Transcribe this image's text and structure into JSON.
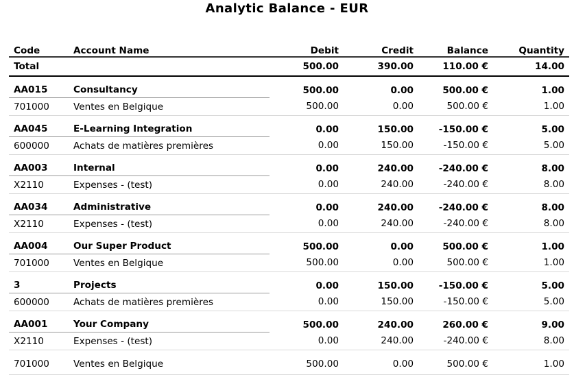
{
  "title": "Analytic Balance - EUR",
  "headers": {
    "code": "Code",
    "name": "Account Name",
    "debit": "Debit",
    "credit": "Credit",
    "balance": "Balance",
    "quantity": "Quantity"
  },
  "total": {
    "label": "Total",
    "debit": "500.00",
    "credit": "390.00",
    "balance": "110.00 €",
    "quantity": "14.00"
  },
  "groups": [
    {
      "code": "AA015",
      "name": "Consultancy",
      "debit": "500.00",
      "credit": "0.00",
      "balance": "500.00 €",
      "quantity": "1.00",
      "lines": [
        {
          "code": "701000",
          "name": "Ventes en Belgique",
          "debit": "500.00",
          "credit": "0.00",
          "balance": "500.00 €",
          "quantity": "1.00"
        }
      ]
    },
    {
      "code": "AA045",
      "name": "E-Learning Integration",
      "debit": "0.00",
      "credit": "150.00",
      "balance": "-150.00 €",
      "quantity": "5.00",
      "lines": [
        {
          "code": "600000",
          "name": "Achats de matières premières",
          "debit": "0.00",
          "credit": "150.00",
          "balance": "-150.00 €",
          "quantity": "5.00"
        }
      ]
    },
    {
      "code": "AA003",
      "name": "Internal",
      "debit": "0.00",
      "credit": "240.00",
      "balance": "-240.00 €",
      "quantity": "8.00",
      "lines": [
        {
          "code": "X2110",
          "name": "Expenses - (test)",
          "debit": "0.00",
          "credit": "240.00",
          "balance": "-240.00 €",
          "quantity": "8.00"
        }
      ]
    },
    {
      "code": "AA034",
      "name": "Administrative",
      "debit": "0.00",
      "credit": "240.00",
      "balance": "-240.00 €",
      "quantity": "8.00",
      "lines": [
        {
          "code": "X2110",
          "name": "Expenses - (test)",
          "debit": "0.00",
          "credit": "240.00",
          "balance": "-240.00 €",
          "quantity": "8.00"
        }
      ]
    },
    {
      "code": "AA004",
      "name": "Our Super Product",
      "debit": "500.00",
      "credit": "0.00",
      "balance": "500.00 €",
      "quantity": "1.00",
      "lines": [
        {
          "code": "701000",
          "name": "Ventes en Belgique",
          "debit": "500.00",
          "credit": "0.00",
          "balance": "500.00 €",
          "quantity": "1.00"
        }
      ]
    },
    {
      "code": "3",
      "name": "Projects",
      "debit": "0.00",
      "credit": "150.00",
      "balance": "-150.00 €",
      "quantity": "5.00",
      "lines": [
        {
          "code": "600000",
          "name": "Achats de matières premières",
          "debit": "0.00",
          "credit": "150.00",
          "balance": "-150.00 €",
          "quantity": "5.00"
        }
      ]
    },
    {
      "code": "AA001",
      "name": "Your Company",
      "debit": "500.00",
      "credit": "240.00",
      "balance": "260.00 €",
      "quantity": "9.00",
      "lines": [
        {
          "code": "X2110",
          "name": "Expenses - (test)",
          "debit": "0.00",
          "credit": "240.00",
          "balance": "-240.00 €",
          "quantity": "8.00"
        },
        {
          "code": "701000",
          "name": "Ventes en Belgique",
          "debit": "500.00",
          "credit": "0.00",
          "balance": "500.00 €",
          "quantity": "1.00"
        }
      ]
    }
  ]
}
